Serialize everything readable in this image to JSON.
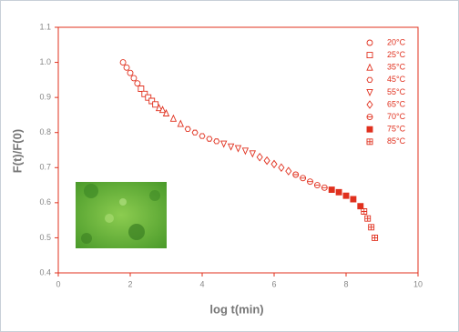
{
  "chart_data": {
    "type": "scatter",
    "xlabel": "log t(min)",
    "ylabel": "F(t)/F(0)",
    "xlim": [
      0,
      10
    ],
    "xticks": [
      0,
      2,
      4,
      6,
      8,
      10
    ],
    "ylim": [
      0.4,
      1.1
    ],
    "yticks": [
      0.4,
      0.5,
      0.6,
      0.7,
      0.8,
      0.9,
      {
        "value": 1,
        "label": "1.0"
      },
      1.1
    ],
    "color": "#e0301e",
    "series": [
      {
        "name": "20°C",
        "marker": "circle",
        "x": [
          1.8,
          1.9,
          2.0,
          2.1,
          2.2
        ],
        "values": [
          1.0,
          0.985,
          0.97,
          0.955,
          0.94
        ]
      },
      {
        "name": "25°C",
        "marker": "square",
        "x": [
          2.3,
          2.4,
          2.5,
          2.6,
          2.7
        ],
        "values": [
          0.925,
          0.91,
          0.9,
          0.89,
          0.88
        ]
      },
      {
        "name": "35°C",
        "marker": "triangle",
        "x": [
          2.8,
          2.9,
          3.0,
          3.2,
          3.4
        ],
        "values": [
          0.87,
          0.865,
          0.855,
          0.84,
          0.825
        ]
      },
      {
        "name": "45°C",
        "marker": "hexagon",
        "x": [
          3.6,
          3.8,
          4.0,
          4.2,
          4.4
        ],
        "values": [
          0.81,
          0.8,
          0.79,
          0.782,
          0.775
        ]
      },
      {
        "name": "55°C",
        "marker": "triangle-down",
        "x": [
          4.6,
          4.8,
          5.0,
          5.2,
          5.4
        ],
        "values": [
          0.768,
          0.76,
          0.755,
          0.748,
          0.74
        ]
      },
      {
        "name": "65°C",
        "marker": "diamond",
        "x": [
          5.6,
          5.8,
          6.0,
          6.2,
          6.4
        ],
        "values": [
          0.73,
          0.72,
          0.71,
          0.7,
          0.69
        ]
      },
      {
        "name": "70°C",
        "marker": "circle-bar",
        "x": [
          6.6,
          6.8,
          7.0,
          7.2,
          7.4
        ],
        "values": [
          0.68,
          0.67,
          0.66,
          0.65,
          0.643
        ]
      },
      {
        "name": "75°C",
        "marker": "square-filled",
        "x": [
          7.6,
          7.8,
          8.0,
          8.2,
          8.4
        ],
        "values": [
          0.637,
          0.63,
          0.62,
          0.61,
          0.59
        ]
      },
      {
        "name": "85°C",
        "marker": "square-cross",
        "x": [
          8.5,
          8.6,
          8.7,
          8.8
        ],
        "values": [
          0.575,
          0.555,
          0.53,
          0.5
        ]
      }
    ]
  }
}
